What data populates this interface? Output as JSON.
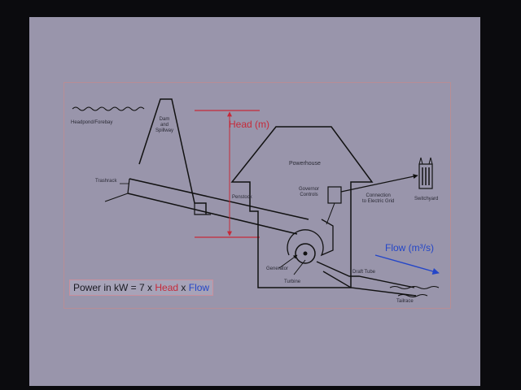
{
  "labels": {
    "headpond": "Headpond/Forebay",
    "dam": "Dam\nand\nSpillway",
    "trashrack": "Trashrack",
    "penstock": "Penstock",
    "powerhouse": "Powerhouse",
    "governor": "Governor\nControls",
    "connection": "Connection\nto Electric Grid",
    "switchyard": "Switchyard",
    "generator": "Generator",
    "turbine": "Turbine",
    "draft_tube": "Draft Tube",
    "tailrace": "Tailrace",
    "head": "Head (m)",
    "flow": "Flow (m³/s)"
  },
  "formula": {
    "prefix": "Power in kW = 7 x ",
    "head": "Head",
    "sep": " x ",
    "flow": "Flow"
  },
  "colors": {
    "head": "#c62a3a",
    "flow": "#2446c8",
    "frame": "#b88d95",
    "slide": "#9995ab"
  }
}
